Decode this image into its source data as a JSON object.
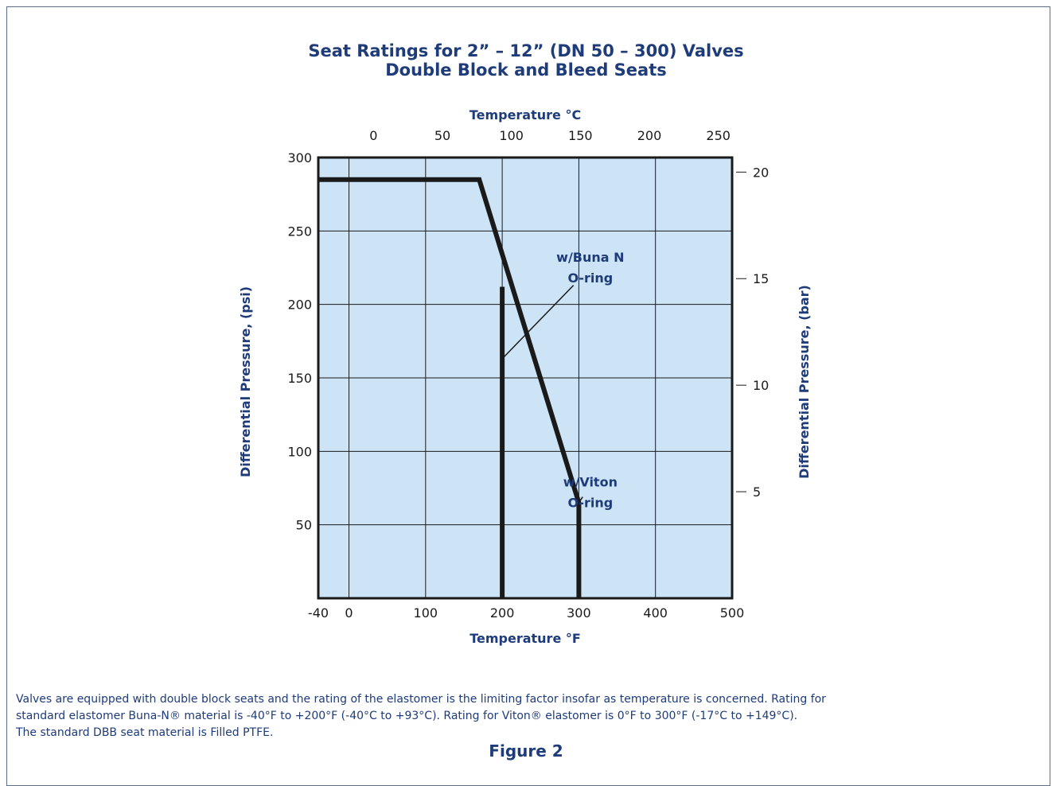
{
  "chart_data": {
    "type": "line",
    "title": "Seat Ratings for 2” – 12” (DN 50 – 300) Valves",
    "subtitle": "Double Block and Bleed Seats",
    "xlabel_bottom": "Temperature °F",
    "xlabel_top": "Temperature °C",
    "ylabel_left": "Differential Pressure, (psi)",
    "ylabel_right": "Differential Pressure, (bar)",
    "xlim": [
      -40,
      500
    ],
    "ylim": [
      0,
      300
    ],
    "x_ticks": [
      -40,
      0,
      100,
      200,
      300,
      400,
      500
    ],
    "x_tick_labels": [
      "-40",
      "0",
      "100",
      "200",
      "300",
      "400",
      "500"
    ],
    "y_ticks": [
      50,
      100,
      150,
      200,
      250,
      300
    ],
    "y_tick_labels": [
      "50",
      "100",
      "150",
      "200",
      "250",
      "300"
    ],
    "top_ticks": [
      0,
      50,
      100,
      150,
      200,
      250
    ],
    "top_tick_labels": [
      "0",
      "50",
      "100",
      "150",
      "200",
      "250"
    ],
    "right_ticks": [
      5,
      10,
      15,
      20
    ],
    "right_tick_labels": [
      "5",
      "10",
      "15",
      "20"
    ],
    "grid": true,
    "x_gridlines": [
      0,
      100,
      200,
      300,
      400
    ],
    "y_gridlines": [
      50,
      100,
      150,
      200,
      250
    ],
    "series": [
      {
        "id": "main-curve",
        "x": [
          -40,
          170,
          300,
          300
        ],
        "y": [
          285,
          285,
          65,
          0
        ]
      },
      {
        "id": "buna-limit",
        "x": [
          200,
          200
        ],
        "y": [
          0,
          212
        ]
      }
    ],
    "annotations": [
      {
        "id": "buna",
        "lines": [
          "w/Buna N",
          "O-ring"
        ],
        "x": 315,
        "y": 229,
        "pointer_from": [
          293,
          213
        ],
        "pointer_to": [
          200,
          163
        ]
      },
      {
        "id": "viton",
        "lines": [
          "w/Viton",
          "O-ring"
        ],
        "x": 315,
        "y": 76,
        "pointer_from": [
          305,
          69
        ],
        "pointer_to": [
          300,
          65
        ]
      }
    ],
    "colors": {
      "plot_bg": "#cce4f6",
      "grid": "#1a1a1a",
      "curve": "#1a1a1a",
      "text_accent": "#1e3b7a"
    }
  },
  "caption": {
    "line1": "Valves are equipped with double block seats and the rating of the elastomer is the limiting factor insofar as temperature is concerned. Rating for",
    "line2": "standard elastomer Buna-N® material is -40°F to +200°F (-40°C to +93°C). Rating for Viton® elastomer is 0°F to 300°F (-17°C to +149°C).",
    "line3": "The standard DBB seat material is Filled PTFE."
  },
  "figure_label": "Figure 2"
}
